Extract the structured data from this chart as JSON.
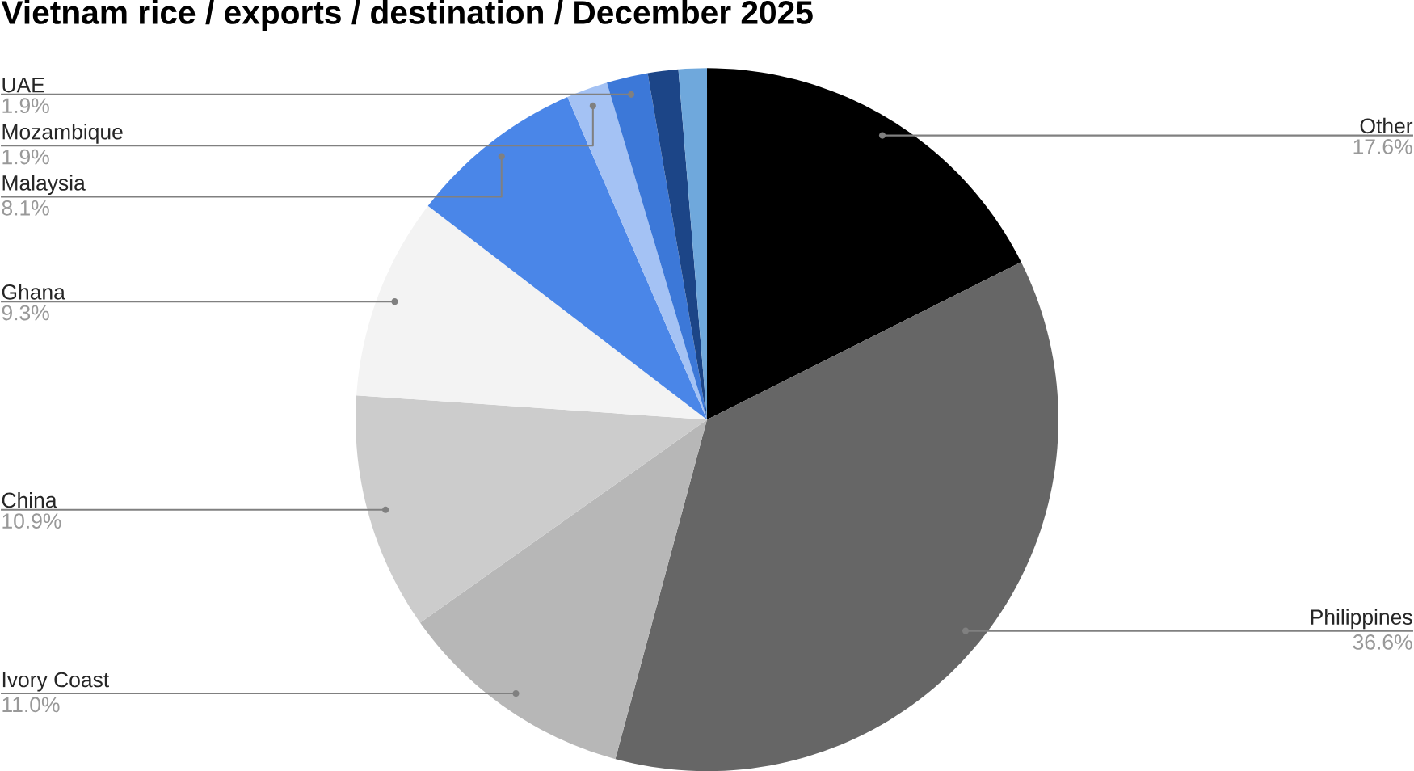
{
  "chart_data": {
    "type": "pie",
    "title": "Vietnam rice / exports / destination / December 2025",
    "categories": [
      "Other",
      "Philippines",
      "Ivory Coast",
      "China",
      "Ghana",
      "Malaysia",
      "Mozambique",
      "UAE",
      null,
      null
    ],
    "values": [
      17.6,
      36.6,
      11.0,
      10.9,
      9.3,
      8.1,
      1.9,
      1.9,
      1.4,
      1.3
    ],
    "value_labels": [
      "17.6%",
      "36.6%",
      "11.0%",
      "10.9%",
      "9.3%",
      "8.1%",
      "1.9%",
      "1.9%",
      null,
      null
    ],
    "colors": [
      "#000000",
      "#666666",
      "#b7b7b7",
      "#cccccc",
      "#f3f3f3",
      "#4a86e8",
      "#a4c2f4",
      "#3c78d8",
      "#1c4587",
      "#6fa8dc"
    ]
  }
}
